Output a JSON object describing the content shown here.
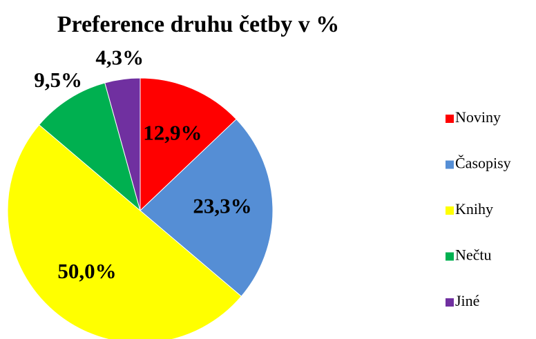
{
  "chart_data": {
    "type": "pie",
    "title": "Preference druhu četby v %",
    "categories": [
      "Noviny",
      "Časopisy",
      "Knihy",
      "Nečtu",
      "Jiné"
    ],
    "values": [
      12.9,
      23.3,
      50.0,
      9.5,
      4.3
    ],
    "value_labels": [
      "12,9%",
      "23,3%",
      "50,0%",
      "9,5%",
      "4,3%"
    ],
    "colors": [
      "#ff0000",
      "#558ed5",
      "#ffff00",
      "#00b050",
      "#7030a0"
    ],
    "legend": "right"
  }
}
